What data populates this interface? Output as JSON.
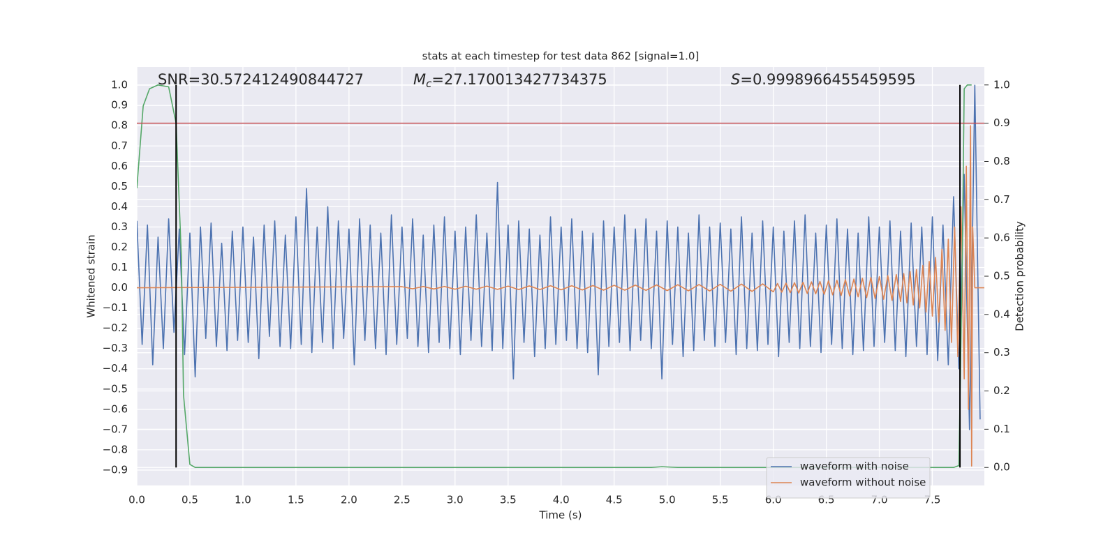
{
  "chart_data": {
    "type": "line",
    "title": "stats at each timestep for test data 862 [signal=1.0]",
    "xlabel": "Time (s)",
    "ylabel": "Whitened strain",
    "y2label": "Detection probability",
    "xlim": [
      0,
      7.99
    ],
    "ylim": [
      -0.976,
      1.09
    ],
    "y2lim": [
      -0.047,
      1.047
    ],
    "grid": true,
    "legend_loc": "lower right",
    "xticks": [
      {
        "value": 0,
        "label": "0.0"
      },
      0.5,
      {
        "value": 1,
        "label": "1.0"
      },
      1.5,
      {
        "value": 2,
        "label": "2.0"
      },
      2.5,
      {
        "value": 3,
        "label": "3.0"
      },
      3.5,
      {
        "value": 4,
        "label": "4.0"
      },
      4.5,
      {
        "value": 5,
        "label": "5.0"
      },
      5.5,
      {
        "value": 6,
        "label": "6.0"
      },
      6.5,
      {
        "value": 7,
        "label": "7.0"
      },
      7.5
    ],
    "yticks": [
      {
        "value": -0.9,
        "label": "−0.9"
      },
      {
        "value": -0.8,
        "label": "−0.8"
      },
      {
        "value": -0.7,
        "label": "−0.7"
      },
      {
        "value": -0.6,
        "label": "−0.6"
      },
      {
        "value": -0.5,
        "label": "−0.5"
      },
      {
        "value": -0.4,
        "label": "−0.4"
      },
      {
        "value": -0.3,
        "label": "−0.3"
      },
      {
        "value": -0.2,
        "label": "−0.2"
      },
      {
        "value": -0.1,
        "label": "−0.1"
      },
      {
        "value": 0,
        "label": "0.0"
      },
      0.1,
      0.2,
      0.3,
      0.4,
      0.5,
      0.6,
      0.7,
      0.8,
      0.9,
      {
        "value": 1,
        "label": "1.0"
      }
    ],
    "y2ticks": [
      {
        "value": 0,
        "label": "0.0"
      },
      0.1,
      0.2,
      0.3,
      0.4,
      0.5,
      0.6,
      0.7,
      0.8,
      0.9,
      {
        "value": 1,
        "label": "1.0"
      }
    ],
    "annotations": [
      {
        "text": "SNR=30.572412490844727"
      },
      {
        "symbol": "M",
        "subscript": "c",
        "text": "=27.170013427734375"
      },
      {
        "symbol": "S",
        "text": "=0.9998966455459595"
      }
    ],
    "reference_lines": [
      {
        "axis": "y2",
        "value": 0.9,
        "color": "#c44e52"
      }
    ],
    "vlines": [
      {
        "x": 0.37,
        "y2range": [
          0,
          1
        ],
        "color": "#000000"
      },
      {
        "x": 7.76,
        "y2range": [
          0,
          1
        ],
        "color": "#000000"
      }
    ],
    "series": [
      {
        "name": "waveform with noise",
        "color": "#4c72b0",
        "x": [
          0,
          0.05,
          0.1,
          0.15,
          0.2,
          0.25,
          0.3,
          0.35,
          0.4,
          0.45,
          0.5,
          0.55,
          0.6,
          0.65,
          0.7,
          0.75,
          0.8,
          0.85,
          0.9,
          0.95,
          1,
          1.05,
          1.1,
          1.15,
          1.2,
          1.25,
          1.3,
          1.35,
          1.4,
          1.45,
          1.5,
          1.55,
          1.6,
          1.65,
          1.7,
          1.75,
          1.8,
          1.85,
          1.9,
          1.95,
          2,
          2.05,
          2.1,
          2.15,
          2.2,
          2.25,
          2.3,
          2.35,
          2.4,
          2.45,
          2.5,
          2.55,
          2.6,
          2.65,
          2.7,
          2.75,
          2.8,
          2.85,
          2.9,
          2.95,
          3,
          3.05,
          3.1,
          3.15,
          3.2,
          3.25,
          3.3,
          3.35,
          3.4,
          3.45,
          3.5,
          3.55,
          3.6,
          3.65,
          3.7,
          3.75,
          3.8,
          3.85,
          3.9,
          3.95,
          4,
          4.05,
          4.1,
          4.15,
          4.2,
          4.25,
          4.3,
          4.35,
          4.4,
          4.45,
          4.5,
          4.55,
          4.6,
          4.65,
          4.7,
          4.75,
          4.8,
          4.85,
          4.9,
          4.95,
          5,
          5.05,
          5.1,
          5.15,
          5.2,
          5.25,
          5.3,
          5.35,
          5.4,
          5.45,
          5.5,
          5.55,
          5.6,
          5.65,
          5.7,
          5.75,
          5.8,
          5.85,
          5.9,
          5.95,
          6,
          6.05,
          6.1,
          6.15,
          6.2,
          6.25,
          6.3,
          6.35,
          6.4,
          6.45,
          6.5,
          6.55,
          6.6,
          6.65,
          6.7,
          6.75,
          6.8,
          6.85,
          6.9,
          6.95,
          7,
          7.05,
          7.1,
          7.15,
          7.2,
          7.25,
          7.3,
          7.35,
          7.4,
          7.45,
          7.5,
          7.55,
          7.6,
          7.65,
          7.7,
          7.75,
          7.8,
          7.85,
          7.9,
          7.95
        ],
        "values": [
          0.33,
          -0.28,
          0.31,
          -0.38,
          0.25,
          -0.3,
          0.34,
          -0.22,
          0.29,
          -0.33,
          0.27,
          -0.44,
          0.3,
          -0.25,
          0.32,
          -0.29,
          0.22,
          -0.31,
          0.28,
          -0.26,
          0.3,
          -0.27,
          0.25,
          -0.35,
          0.31,
          -0.24,
          0.33,
          -0.29,
          0.26,
          -0.3,
          0.35,
          -0.28,
          0.49,
          -0.32,
          0.3,
          -0.27,
          0.4,
          -0.3,
          0.33,
          -0.25,
          0.29,
          -0.38,
          0.34,
          -0.26,
          0.31,
          -0.3,
          0.27,
          -0.33,
          0.36,
          -0.28,
          0.3,
          -0.25,
          0.34,
          -0.29,
          0.26,
          -0.32,
          0.31,
          -0.27,
          0.35,
          -0.3,
          0.28,
          -0.33,
          0.3,
          -0.26,
          0.36,
          -0.29,
          0.27,
          -0.31,
          0.52,
          -0.3,
          0.31,
          -0.45,
          0.33,
          -0.27,
          0.29,
          -0.34,
          0.26,
          -0.3,
          0.35,
          -0.28,
          0.3,
          -0.26,
          0.34,
          -0.3,
          0.28,
          -0.32,
          0.27,
          -0.43,
          0.33,
          -0.29,
          0.3,
          -0.27,
          0.36,
          -0.31,
          0.29,
          -0.26,
          0.34,
          -0.3,
          0.28,
          -0.45,
          0.33,
          -0.28,
          0.3,
          -0.34,
          0.27,
          -0.31,
          0.36,
          -0.26,
          0.3,
          -0.29,
          0.32,
          -0.27,
          0.29,
          -0.33,
          0.35,
          -0.3,
          0.27,
          -0.31,
          0.33,
          -0.28,
          0.3,
          -0.34,
          0.28,
          -0.27,
          0.33,
          -0.3,
          0.36,
          -0.29,
          0.27,
          -0.32,
          0.31,
          -0.28,
          0.34,
          -0.3,
          0.29,
          -0.33,
          0.27,
          -0.31,
          0.35,
          -0.29,
          0.3,
          -0.27,
          0.33,
          -0.31,
          0.28,
          -0.34,
          0.32,
          -0.29,
          0.3,
          -0.33,
          0.35,
          -0.36,
          0.31,
          -0.38,
          0.45,
          -0.4,
          0.56,
          -0.7,
          1.0,
          -0.65
        ]
      },
      {
        "name": "waveform without noise",
        "color": "#dd8452",
        "x": [
          0,
          2.5,
          2.6,
          2.7,
          2.8,
          2.9,
          3.0,
          3.1,
          3.2,
          3.3,
          3.4,
          3.5,
          3.6,
          3.7,
          3.8,
          3.9,
          4.0,
          4.1,
          4.2,
          4.3,
          4.4,
          4.5,
          4.6,
          4.7,
          4.8,
          4.9,
          5.0,
          5.1,
          5.2,
          5.3,
          5.4,
          5.5,
          5.6,
          5.7,
          5.8,
          5.9,
          6.0,
          6.04,
          6.08,
          6.12,
          6.16,
          6.2,
          6.24,
          6.28,
          6.32,
          6.36,
          6.4,
          6.44,
          6.48,
          6.52,
          6.56,
          6.6,
          6.64,
          6.68,
          6.72,
          6.76,
          6.8,
          6.84,
          6.88,
          6.92,
          6.96,
          7.0,
          7.04,
          7.08,
          7.12,
          7.16,
          7.2,
          7.23,
          7.26,
          7.29,
          7.32,
          7.35,
          7.38,
          7.41,
          7.44,
          7.47,
          7.5,
          7.53,
          7.56,
          7.59,
          7.62,
          7.65,
          7.68,
          7.71,
          7.74,
          7.77,
          7.8,
          7.82,
          7.84,
          7.86,
          7.87,
          7.88,
          7.9,
          7.99
        ],
        "values": [
          0,
          0.005,
          -0.005,
          0.006,
          -0.006,
          0.006,
          -0.007,
          0.007,
          -0.007,
          0.008,
          -0.008,
          0.008,
          -0.009,
          0.009,
          -0.009,
          0.01,
          -0.01,
          0.01,
          -0.011,
          0.011,
          -0.012,
          0.012,
          -0.012,
          0.013,
          -0.013,
          0.014,
          -0.014,
          0.015,
          -0.015,
          0.016,
          -0.016,
          0.017,
          -0.017,
          0.018,
          -0.018,
          0.019,
          -0.02,
          0.021,
          -0.022,
          0.023,
          -0.024,
          0.025,
          -0.026,
          0.027,
          -0.028,
          0.029,
          -0.03,
          0.031,
          -0.032,
          0.034,
          -0.035,
          0.037,
          -0.038,
          0.04,
          -0.041,
          0.043,
          -0.045,
          0.047,
          -0.049,
          0.051,
          -0.053,
          0.055,
          -0.057,
          0.06,
          -0.062,
          0.065,
          -0.068,
          0.07,
          -0.075,
          0.08,
          -0.085,
          0.09,
          -0.1,
          0.11,
          -0.12,
          0.13,
          -0.14,
          0.15,
          -0.17,
          0.19,
          -0.21,
          0.24,
          -0.27,
          0.3,
          -0.34,
          0.4,
          -0.45,
          0.6,
          -0.6,
          0.8,
          -0.88,
          0.3,
          0,
          0
        ]
      },
      {
        "color": "#55a868",
        "axis": "y2",
        "x": [
          0,
          0.06,
          0.12,
          0.2,
          0.3,
          0.37,
          0.42,
          0.44,
          0.5,
          0.55,
          4.85,
          4.95,
          5.1,
          7.7,
          7.75,
          7.78,
          7.8,
          7.83,
          7.87
        ],
        "values": [
          0.73,
          0.945,
          0.99,
          1.0,
          0.995,
          0.9,
          0.55,
          0.19,
          0.008,
          0.0,
          0.0,
          0.002,
          0.0,
          0.0,
          0.005,
          0.5,
          0.99,
          1.0,
          1.0
        ]
      }
    ]
  }
}
